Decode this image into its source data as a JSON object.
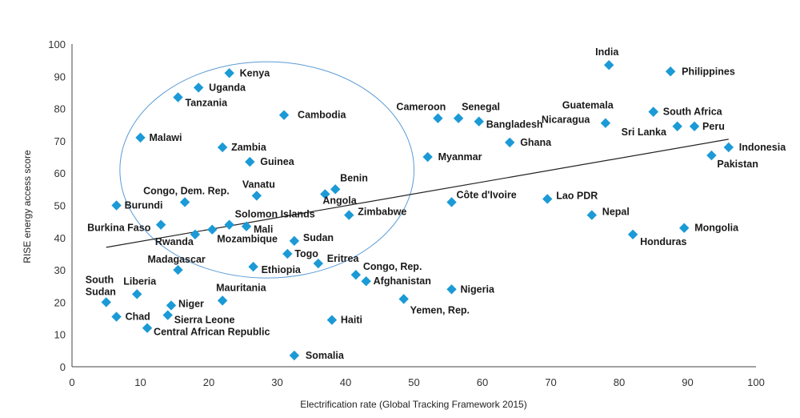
{
  "chart_data": {
    "type": "scatter",
    "xlabel": "Electrification rate (Global Tracking Framework 2015)",
    "ylabel": "RISE energy access score",
    "xlim": [
      0,
      100
    ],
    "ylim": [
      0,
      100
    ],
    "xticks": [
      0,
      10,
      20,
      30,
      40,
      50,
      60,
      70,
      80,
      90,
      100
    ],
    "yticks": [
      0,
      10,
      20,
      30,
      40,
      50,
      60,
      70,
      80,
      90,
      100
    ],
    "grid": false,
    "legend": "none",
    "marker_color": "#1b9ad6",
    "trend_color": "#222222",
    "trendline": {
      "x": [
        5,
        96
      ],
      "y": [
        37,
        70.5
      ]
    },
    "highlight_ellipse": {
      "cx": 28.5,
      "cy": 61,
      "rx": 21.5,
      "ry": 33.5,
      "color": "#5b9bd5"
    },
    "points": [
      {
        "label": "India",
        "x": 78.5,
        "y": 93.5
      },
      {
        "label": "Philippines",
        "x": 87.5,
        "y": 91.5
      },
      {
        "label": "Kenya",
        "x": 23,
        "y": 91
      },
      {
        "label": "Uganda",
        "x": 18.5,
        "y": 86.5
      },
      {
        "label": "Tanzania",
        "x": 15.5,
        "y": 83.5
      },
      {
        "label": "Cambodia",
        "x": 31,
        "y": 78
      },
      {
        "label": "Cameroon",
        "x": 53.5,
        "y": 77
      },
      {
        "label": "Senegal",
        "x": 56.5,
        "y": 77
      },
      {
        "label": "Bangladesh",
        "x": 59.5,
        "y": 76
      },
      {
        "label": "Guatemala",
        "x": 85,
        "y": 79
      },
      {
        "label": "South Africa",
        "x": 85,
        "y": 79
      },
      {
        "label": "Nicaragua",
        "x": 78,
        "y": 75.5
      },
      {
        "label": "Sri Lanka",
        "x": 88.5,
        "y": 74.5
      },
      {
        "label": "Peru",
        "x": 91,
        "y": 74.5
      },
      {
        "label": "Malawi",
        "x": 10,
        "y": 71
      },
      {
        "label": "Zambia",
        "x": 22,
        "y": 68
      },
      {
        "label": "Ghana",
        "x": 64,
        "y": 69.5
      },
      {
        "label": "Indonesia",
        "x": 96,
        "y": 68
      },
      {
        "label": "Myanmar",
        "x": 52,
        "y": 65
      },
      {
        "label": "Pakistan",
        "x": 93.5,
        "y": 65.5
      },
      {
        "label": "Guinea",
        "x": 26,
        "y": 63.5
      },
      {
        "label": "Benin",
        "x": 38.5,
        "y": 55
      },
      {
        "label": "Congo, Dem. Rep.",
        "x": 16.5,
        "y": 51
      },
      {
        "label": "Vanatu",
        "x": 27,
        "y": 53
      },
      {
        "label": "Angola",
        "x": 37,
        "y": 53.5
      },
      {
        "label": "Burundi",
        "x": 6.5,
        "y": 50
      },
      {
        "label": "Côte d'Ivoire",
        "x": 55.5,
        "y": 51
      },
      {
        "label": "Lao PDR",
        "x": 69.5,
        "y": 52
      },
      {
        "label": "Zimbabwe",
        "x": 40.5,
        "y": 47
      },
      {
        "label": "Nepal",
        "x": 76,
        "y": 47
      },
      {
        "label": "Burkina Faso",
        "x": 13,
        "y": 44
      },
      {
        "label": "Solomon Islands",
        "x": 23,
        "y": 44
      },
      {
        "label": "Mali",
        "x": 25.5,
        "y": 43.5
      },
      {
        "label": "Mongolia",
        "x": 89.5,
        "y": 43
      },
      {
        "label": "Mozambique",
        "x": 20.5,
        "y": 42.5
      },
      {
        "label": "Rwanda",
        "x": 18,
        "y": 41
      },
      {
        "label": "Honduras",
        "x": 82,
        "y": 41
      },
      {
        "label": "Sudan",
        "x": 32.5,
        "y": 39
      },
      {
        "label": "Togo",
        "x": 31.5,
        "y": 35
      },
      {
        "label": "Eritrea",
        "x": 36,
        "y": 32
      },
      {
        "label": "Ethiopia",
        "x": 26.5,
        "y": 31
      },
      {
        "label": "Madagascar",
        "x": 15.5,
        "y": 30
      },
      {
        "label": "Congo, Rep.",
        "x": 41.5,
        "y": 28.5
      },
      {
        "label": "Afghanistan",
        "x": 43,
        "y": 26.5
      },
      {
        "label": "Nigeria",
        "x": 55.5,
        "y": 24
      },
      {
        "label": "Liberia",
        "x": 9.5,
        "y": 22.5
      },
      {
        "label": "Yemen, Rep.",
        "x": 48.5,
        "y": 21
      },
      {
        "label": "Mauritania",
        "x": 22,
        "y": 20.5
      },
      {
        "label": "South Sudan",
        "x": 5,
        "y": 20
      },
      {
        "label": "Niger",
        "x": 14.5,
        "y": 19
      },
      {
        "label": "Sierra Leone",
        "x": 14,
        "y": 16
      },
      {
        "label": "Chad",
        "x": 6.5,
        "y": 15.5
      },
      {
        "label": "Haiti",
        "x": 38,
        "y": 14.5
      },
      {
        "label": "Central African Republic",
        "x": 11,
        "y": 12
      },
      {
        "label": "Somalia",
        "x": 32.5,
        "y": 3.5
      }
    ]
  }
}
